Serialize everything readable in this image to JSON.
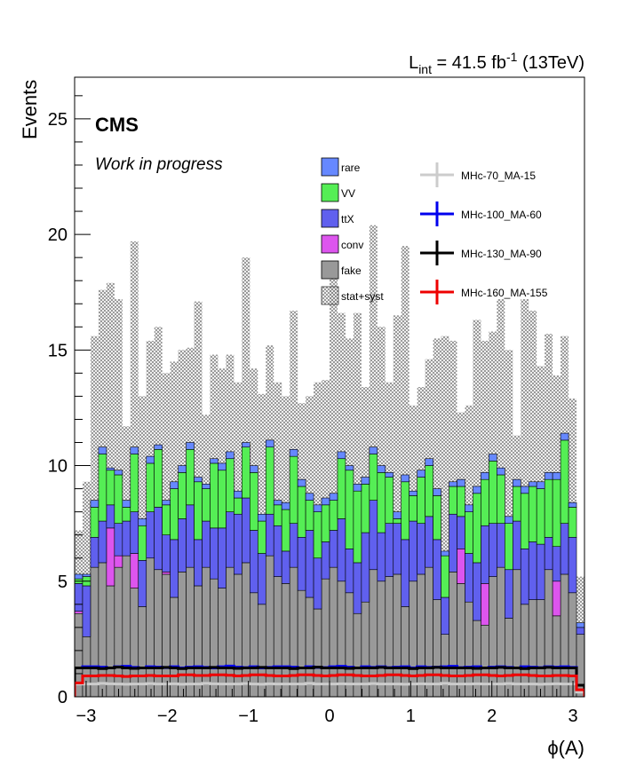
{
  "chart_data": {
    "type": "bar",
    "subtype": "stacked-histogram",
    "cms_label": "CMS",
    "cms_sublabel": "Work in progress",
    "lumi_main": "L",
    "lumi_sub": "int",
    "lumi_value": " = 41.5 fb",
    "lumi_sup": "-1",
    "lumi_energy": " (13TeV)",
    "ylabel": "Events",
    "xlabel": "ϕ(A)",
    "xlim": [
      -3.14159,
      3.14159
    ],
    "ylim": [
      0,
      26.8
    ],
    "xticks": [
      -3,
      -2,
      -1,
      0,
      1,
      2,
      3
    ],
    "xtick_labels": [
      "−3",
      "−2",
      "−1",
      "0",
      "1",
      "2",
      "3"
    ],
    "yticks": [
      0,
      5,
      10,
      15,
      20,
      25
    ],
    "ytick_labels": [
      "0",
      "5",
      "10",
      "15",
      "20",
      "25"
    ],
    "bins": 64,
    "stack_order": [
      "fake",
      "conv",
      "ttX",
      "VV",
      "rare"
    ],
    "series": [
      {
        "name": "fake",
        "color": "#999999",
        "values": [
          3.6,
          2.6,
          5.6,
          5.8,
          4.8,
          5.6,
          6.1,
          4.7,
          3.9,
          6.0,
          5.5,
          5.3,
          4.3,
          5.4,
          5.6,
          4.8,
          5.6,
          5.1,
          4.7,
          5.6,
          5.3,
          5.8,
          4.5,
          4.0,
          6.1,
          5.2,
          4.9,
          5.6,
          4.6,
          4.3,
          3.8,
          5.1,
          5.6,
          5.0,
          4.5,
          3.6,
          4.1,
          5.5,
          5.0,
          5.2,
          5.3,
          3.9,
          5.0,
          5.3,
          5.6,
          4.2,
          2.7,
          5.4,
          4.9,
          4.1,
          3.3,
          3.1,
          5.2,
          5.6,
          3.4,
          5.5,
          4.0,
          4.2,
          4.2,
          5.5,
          3.5,
          5.3,
          4.5,
          2.7
        ]
      },
      {
        "name": "conv",
        "color": "#dd55ee",
        "values": [
          0.1,
          0.0,
          0.0,
          0.0,
          2.5,
          0.5,
          0.0,
          1.5,
          0.0,
          0.0,
          0.0,
          0.1,
          0.0,
          0.0,
          0.0,
          0.0,
          0.0,
          0.0,
          0.0,
          0.0,
          0.0,
          0.0,
          0.0,
          0.0,
          0.0,
          0.0,
          0.0,
          0.0,
          0.0,
          0.0,
          0.0,
          0.0,
          0.0,
          0.0,
          0.0,
          0.0,
          0.0,
          0.0,
          0.0,
          0.0,
          0.0,
          0.0,
          0.0,
          0.0,
          0.0,
          0.0,
          0.0,
          0.0,
          1.5,
          0.0,
          0.0,
          1.8,
          0.0,
          0.0,
          0.0,
          0.0,
          0.0,
          0.0,
          0.0,
          0.0,
          1.5,
          0.0,
          0.0,
          0.0
        ]
      },
      {
        "name": "ttX",
        "color": "#6060ee",
        "values": [
          1.2,
          2.2,
          1.3,
          1.8,
          1.0,
          1.4,
          1.5,
          1.8,
          2.0,
          2.0,
          2.7,
          1.6,
          2.5,
          2.3,
          2.7,
          2.0,
          2.0,
          2.2,
          2.6,
          2.4,
          2.6,
          2.8,
          2.7,
          2.2,
          1.8,
          2.2,
          1.4,
          1.9,
          2.3,
          2.9,
          2.2,
          1.6,
          1.6,
          2.7,
          1.9,
          2.2,
          3.0,
          3.0,
          2.1,
          2.3,
          2.2,
          2.9,
          2.6,
          2.2,
          2.2,
          2.6,
          1.6,
          2.5,
          1.4,
          2.1,
          2.5,
          2.5,
          2.3,
          1.9,
          2.1,
          2.1,
          2.4,
          2.5,
          2.4,
          1.4,
          1.5,
          2.2,
          2.4,
          0.3
        ]
      },
      {
        "name": "VV",
        "color": "#55ee55",
        "values": [
          0.2,
          0.4,
          1.3,
          2.9,
          1.5,
          2.1,
          0.6,
          2.5,
          1.5,
          2.1,
          2.5,
          1.3,
          2.2,
          2.0,
          2.4,
          2.5,
          1.4,
          2.8,
          2.5,
          2.3,
          0.7,
          2.2,
          2.5,
          1.4,
          2.9,
          0.9,
          1.8,
          2.9,
          2.2,
          1.3,
          2.0,
          1.6,
          1.3,
          2.6,
          3.4,
          3.1,
          2.1,
          2.0,
          2.6,
          2.0,
          0.2,
          2.5,
          1.1,
          2.0,
          2.2,
          1.9,
          1.8,
          1.2,
          1.3,
          1.8,
          3.0,
          2.0,
          2.7,
          2.1,
          2.0,
          1.5,
          2.4,
          2.4,
          2.4,
          2.5,
          2.9,
          3.6,
          1.3,
          0.0
        ]
      },
      {
        "name": "rare",
        "color": "#6688ff",
        "values": [
          0.2,
          0.1,
          0.3,
          0.3,
          0.1,
          0.2,
          0.3,
          0.3,
          0.3,
          0.3,
          0.2,
          0.2,
          0.3,
          0.3,
          0.3,
          0.2,
          0.2,
          0.2,
          0.3,
          0.3,
          0.3,
          0.2,
          0.3,
          0.3,
          0.3,
          0.2,
          0.3,
          0.3,
          0.3,
          0.3,
          0.3,
          0.3,
          0.3,
          0.3,
          0.2,
          0.3,
          0.3,
          0.3,
          0.3,
          0.2,
          0.3,
          0.3,
          0.2,
          0.3,
          0.3,
          0.3,
          0.2,
          0.2,
          0.3,
          0.3,
          0.3,
          0.3,
          0.3,
          0.3,
          0.3,
          0.3,
          0.3,
          0.2,
          0.3,
          0.3,
          0.3,
          0.3,
          0.2,
          0.2
        ]
      }
    ],
    "stat_syst_upper": [
      7.2,
      9.3,
      15.6,
      17.6,
      17.9,
      17.2,
      11.7,
      19.7,
      13.0,
      15.4,
      16.0,
      14.0,
      14.5,
      15.0,
      15.1,
      17.1,
      12.2,
      14.8,
      14.2,
      14.8,
      13.6,
      19.0,
      14.2,
      13.1,
      15.2,
      13.6,
      13.0,
      16.7,
      12.7,
      13.0,
      13.6,
      13.7,
      18.5,
      16.6,
      15.5,
      16.6,
      13.4,
      20.4,
      16.0,
      13.6,
      16.5,
      19.5,
      12.6,
      13.4,
      14.6,
      15.5,
      15.6,
      15.4,
      12.3,
      12.6,
      16.3,
      15.4,
      15.8,
      17.2,
      15.0,
      11.3,
      17.2,
      16.7,
      14.3,
      15.7,
      13.9,
      15.6,
      12.9,
      5.2
    ],
    "legend": [
      {
        "name": "rare",
        "type": "fill",
        "color": "#6688ff"
      },
      {
        "name": "VV",
        "type": "fill",
        "color": "#55ee55"
      },
      {
        "name": "ttX",
        "type": "fill",
        "color": "#6060ee"
      },
      {
        "name": "conv",
        "type": "fill",
        "color": "#dd55ee"
      },
      {
        "name": "fake",
        "type": "fill",
        "color": "#999999"
      },
      {
        "name": "stat+syst",
        "type": "hatch",
        "color": "#666666"
      }
    ],
    "signals": [
      {
        "name": "MHc-70_MA-15",
        "color": "#cccccc",
        "values": [
          0.55,
          0.55,
          0.55,
          0.58,
          0.56,
          0.55,
          0.54,
          0.55,
          0.55,
          0.57,
          0.55,
          0.55,
          0.56,
          0.54,
          0.55,
          0.55,
          0.58,
          0.56,
          0.55,
          0.55,
          0.55,
          0.57,
          0.55,
          0.54,
          0.56,
          0.55,
          0.55,
          0.55,
          0.55,
          0.58,
          0.55,
          0.55,
          0.55,
          0.56,
          0.55,
          0.55,
          0.55,
          0.57,
          0.55,
          0.55,
          0.55,
          0.54,
          0.55,
          0.56,
          0.55,
          0.55,
          0.58,
          0.55,
          0.55,
          0.55,
          0.56,
          0.55,
          0.55,
          0.55,
          0.57,
          0.55,
          0.55,
          0.55,
          0.54,
          0.55,
          0.56,
          0.55,
          0.55,
          0.2
        ]
      },
      {
        "name": "MHc-100_MA-60",
        "color": "#0000ee",
        "values": [
          1.25,
          1.3,
          1.3,
          1.28,
          1.25,
          1.3,
          1.32,
          1.27,
          1.25,
          1.3,
          1.28,
          1.26,
          1.3,
          1.25,
          1.28,
          1.3,
          1.27,
          1.25,
          1.3,
          1.33,
          1.28,
          1.26,
          1.3,
          1.25,
          1.27,
          1.3,
          1.3,
          1.28,
          1.25,
          1.3,
          1.27,
          1.26,
          1.3,
          1.32,
          1.28,
          1.25,
          1.3,
          1.27,
          1.3,
          1.26,
          1.28,
          1.3,
          1.25,
          1.3,
          1.27,
          1.28,
          1.3,
          1.32,
          1.26,
          1.28,
          1.3,
          1.25,
          1.28,
          1.3,
          1.27,
          1.25,
          1.3,
          1.28,
          1.26,
          1.3,
          1.28,
          1.3,
          1.27,
          0.5
        ]
      },
      {
        "name": "MHc-130_MA-90",
        "color": "#000000",
        "values": [
          1.25,
          1.25,
          1.25,
          1.22,
          1.25,
          1.28,
          1.25,
          1.23,
          1.25,
          1.25,
          1.25,
          1.27,
          1.25,
          1.22,
          1.25,
          1.25,
          1.25,
          1.27,
          1.25,
          1.25,
          1.23,
          1.25,
          1.25,
          1.27,
          1.25,
          1.25,
          1.25,
          1.22,
          1.25,
          1.25,
          1.28,
          1.25,
          1.25,
          1.25,
          1.23,
          1.25,
          1.25,
          1.25,
          1.27,
          1.25,
          1.25,
          1.25,
          1.22,
          1.25,
          1.25,
          1.27,
          1.25,
          1.25,
          1.25,
          1.25,
          1.23,
          1.25,
          1.25,
          1.27,
          1.25,
          1.25,
          1.22,
          1.25,
          1.25,
          1.27,
          1.25,
          1.25,
          1.25,
          0.5
        ]
      },
      {
        "name": "MHc-160_MA-155",
        "color": "#ee0000",
        "values": [
          0.6,
          0.9,
          0.9,
          0.92,
          0.92,
          0.9,
          0.88,
          0.9,
          0.9,
          0.92,
          0.9,
          0.9,
          0.9,
          0.95,
          0.95,
          0.92,
          0.92,
          0.95,
          0.95,
          0.93,
          0.9,
          0.92,
          0.95,
          0.95,
          0.92,
          0.9,
          0.9,
          0.92,
          0.95,
          0.95,
          0.92,
          0.9,
          0.92,
          0.95,
          0.95,
          0.92,
          0.9,
          0.9,
          0.92,
          0.95,
          0.95,
          0.92,
          0.9,
          0.92,
          0.95,
          0.95,
          0.92,
          0.9,
          0.9,
          0.92,
          0.95,
          0.95,
          0.92,
          0.9,
          0.92,
          0.95,
          0.95,
          0.92,
          0.9,
          0.9,
          0.92,
          0.92,
          0.9,
          0.3
        ]
      }
    ]
  }
}
